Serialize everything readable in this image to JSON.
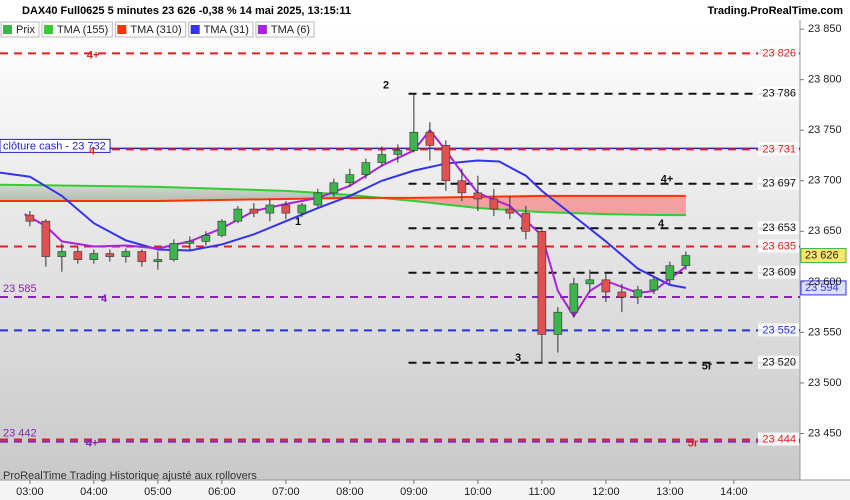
{
  "chart_data": {
    "type": "candlestick",
    "title": "DAX40 Full0625 5 minutes 23 626 -0,38 % 14 mai 2025, 13:15:11",
    "source": "Trading.ProRealTime.com",
    "footer": "ProRealTime Trading  Historique ajusté aux rollovers",
    "price_legend": "Prix",
    "price_color": "#3cb44b",
    "x": [
      "03:00",
      "03:15",
      "03:30",
      "03:45",
      "04:00",
      "04:15",
      "04:30",
      "04:45",
      "05:00",
      "05:15",
      "05:30",
      "05:45",
      "06:00",
      "06:15",
      "06:30",
      "06:45",
      "07:00",
      "07:15",
      "07:30",
      "07:45",
      "08:00",
      "08:15",
      "08:30",
      "08:45",
      "09:00",
      "09:15",
      "09:30",
      "09:45",
      "10:00",
      "10:15",
      "10:30",
      "10:45",
      "11:00",
      "11:15",
      "11:30",
      "11:45",
      "12:00",
      "12:15",
      "12:30",
      "12:45",
      "13:00",
      "13:15"
    ],
    "open": [
      23666,
      23660,
      23625,
      23630,
      23622,
      23628,
      23625,
      23630,
      23620,
      23622,
      23638,
      23640,
      23646,
      23660,
      23672,
      23668,
      23676,
      23668,
      23676,
      23688,
      23698,
      23706,
      23718,
      23726,
      23730,
      23748,
      23735,
      23700,
      23688,
      23682,
      23672,
      23668,
      23650,
      23548,
      23570,
      23598,
      23602,
      23590,
      23585,
      23592,
      23602,
      23616
    ],
    "high": [
      23670,
      23662,
      23638,
      23635,
      23632,
      23632,
      23633,
      23632,
      23630,
      23642,
      23645,
      23650,
      23662,
      23675,
      23678,
      23682,
      23680,
      23678,
      23692,
      23702,
      23712,
      23722,
      23734,
      23736,
      23786,
      23758,
      23740,
      23712,
      23705,
      23692,
      23685,
      23675,
      23652,
      23575,
      23604,
      23612,
      23608,
      23598,
      23596,
      23606,
      23620,
      23630
    ],
    "low": [
      23655,
      23615,
      23610,
      23618,
      23618,
      23620,
      23619,
      23615,
      23612,
      23620,
      23632,
      23636,
      23644,
      23658,
      23664,
      23660,
      23662,
      23664,
      23674,
      23684,
      23694,
      23702,
      23714,
      23718,
      23728,
      23720,
      23690,
      23680,
      23670,
      23665,
      23662,
      23642,
      23520,
      23530,
      23565,
      23590,
      23580,
      23570,
      23578,
      23588,
      23598,
      23612
    ],
    "close": [
      23660,
      23625,
      23630,
      23622,
      23628,
      23625,
      23630,
      23620,
      23622,
      23638,
      23640,
      23646,
      23660,
      23672,
      23668,
      23676,
      23668,
      23676,
      23688,
      23698,
      23706,
      23718,
      23726,
      23730,
      23748,
      23735,
      23700,
      23688,
      23682,
      23672,
      23668,
      23650,
      23548,
      23570,
      23598,
      23602,
      23590,
      23585,
      23592,
      23602,
      23616,
      23626
    ],
    "close_label": "23 626",
    "series": [
      {
        "name": "TMA (155)",
        "color": "#33cc33",
        "x": [
          "02:32",
          "05:00",
          "07:00",
          "08:00",
          "09:00",
          "10:00",
          "11:00",
          "12:00",
          "13:00",
          "13:15"
        ],
        "values": [
          23696,
          23694,
          23690,
          23686,
          23680,
          23673,
          23669,
          23667,
          23666,
          23666
        ]
      },
      {
        "name": "TMA (310)",
        "color": "#ff3300",
        "x": [
          "02:32",
          "05:00",
          "07:00",
          "08:00",
          "09:00",
          "10:00",
          "11:00",
          "12:00",
          "13:00",
          "13:15"
        ],
        "values": [
          23680,
          23680,
          23682,
          23683,
          23683,
          23684,
          23685,
          23685,
          23685,
          23685
        ]
      },
      {
        "name": "TMA (31)",
        "color": "#3333ee",
        "x": [
          "02:32",
          "03:00",
          "03:30",
          "04:00",
          "04:30",
          "05:00",
          "05:30",
          "06:00",
          "06:30",
          "07:00",
          "07:30",
          "08:00",
          "08:30",
          "09:00",
          "09:30",
          "10:00",
          "10:20",
          "10:45",
          "11:00",
          "11:30",
          "12:00",
          "12:30",
          "13:00",
          "13:15"
        ],
        "values": [
          23708,
          23704,
          23685,
          23658,
          23641,
          23632,
          23631,
          23637,
          23647,
          23660,
          23673,
          23685,
          23700,
          23710,
          23717,
          23720,
          23719,
          23705,
          23690,
          23665,
          23640,
          23613,
          23597,
          23594
        ],
        "last_label": "23 594"
      },
      {
        "name": "TMA (6)",
        "color": "#aa22dd",
        "x": [
          "02:55",
          "03:15",
          "03:30",
          "04:00",
          "04:30",
          "05:00",
          "05:30",
          "06:00",
          "06:30",
          "07:00",
          "07:30",
          "08:00",
          "08:30",
          "09:00",
          "09:15",
          "09:30",
          "09:45",
          "10:00",
          "10:30",
          "11:00",
          "11:15",
          "11:30",
          "11:45",
          "12:00",
          "12:30",
          "12:45",
          "13:00",
          "13:15"
        ],
        "values": [
          23667,
          23655,
          23640,
          23635,
          23636,
          23633,
          23640,
          23653,
          23670,
          23677,
          23683,
          23695,
          23715,
          23730,
          23750,
          23730,
          23708,
          23688,
          23675,
          23646,
          23591,
          23566,
          23591,
          23601,
          23589,
          23591,
          23603,
          23615
        ]
      }
    ],
    "levels": [
      {
        "value": 23826,
        "color": "#e02020",
        "style": "dashed",
        "label": "23 826",
        "label_position": "right",
        "note": "4+"
      },
      {
        "value": 23786,
        "color": "#111111",
        "style": "dashed",
        "start": "08:55",
        "label": "23 786",
        "label_position": "right",
        "note": "2"
      },
      {
        "value": 23732,
        "color": "#2222cc",
        "style": "solid",
        "label": "clôture cash -  23 732",
        "label_position": "left"
      },
      {
        "value": 23731,
        "color": "#e02020",
        "style": "dashed",
        "label": "23 731",
        "label_position": "right",
        "note": "4"
      },
      {
        "value": 23697,
        "color": "#111111",
        "style": "dashed",
        "start": "08:55",
        "label": "23 697",
        "label_position": "right",
        "note": "4+"
      },
      {
        "value": 23653,
        "color": "#111111",
        "style": "dashed",
        "start": "08:55",
        "label": "23 653",
        "label_position": "right",
        "note": "4"
      },
      {
        "value": 23635,
        "color": "#e02020",
        "style": "dashed",
        "label": "23 635",
        "label_position": "right"
      },
      {
        "value": 23609,
        "color": "#111111",
        "style": "dashed",
        "start": "08:55",
        "label": "23 609",
        "label_position": "right"
      },
      {
        "value": 23585,
        "color": "#8822bb",
        "style": "dashed",
        "label": "23 585",
        "label_position": "left",
        "note": "4"
      },
      {
        "value": 23552,
        "color": "#2233dd",
        "style": "dashed",
        "label": "23 552",
        "label_position": "right"
      },
      {
        "value": 23520,
        "color": "#111111",
        "style": "dashed",
        "start": "08:55",
        "label": "23 520",
        "label_position": "right",
        "note": "5r"
      },
      {
        "value": 23442,
        "color": "#8822bb",
        "style": "dashed",
        "label": "23 442",
        "label_position": "left",
        "note": "4+"
      },
      {
        "value": 23444,
        "color": "#e02020",
        "style": "dashed",
        "label": "23 444",
        "label_position": "right",
        "note": "5r"
      }
    ],
    "annotations": [
      "1",
      "3"
    ],
    "xlim": [
      "02:32",
      "15:02"
    ],
    "xticks": [
      "03:00",
      "04:00",
      "05:00",
      "06:00",
      "07:00",
      "08:00",
      "09:00",
      "10:00",
      "11:00",
      "12:00",
      "13:00",
      "14:00"
    ],
    "ylim": [
      23404,
      23859
    ],
    "yticks": [
      {
        "value": 23450,
        "label": "23 450"
      },
      {
        "value": 23500,
        "label": "23 500"
      },
      {
        "value": 23550,
        "label": "23 550"
      },
      {
        "value": 23600,
        "label": "23 600"
      },
      {
        "value": 23650,
        "label": "23 650"
      },
      {
        "value": 23700,
        "label": "23 700"
      },
      {
        "value": 23750,
        "label": "23 750"
      },
      {
        "value": 23800,
        "label": "23 800"
      },
      {
        "value": 23850,
        "label": "23 850"
      }
    ]
  }
}
